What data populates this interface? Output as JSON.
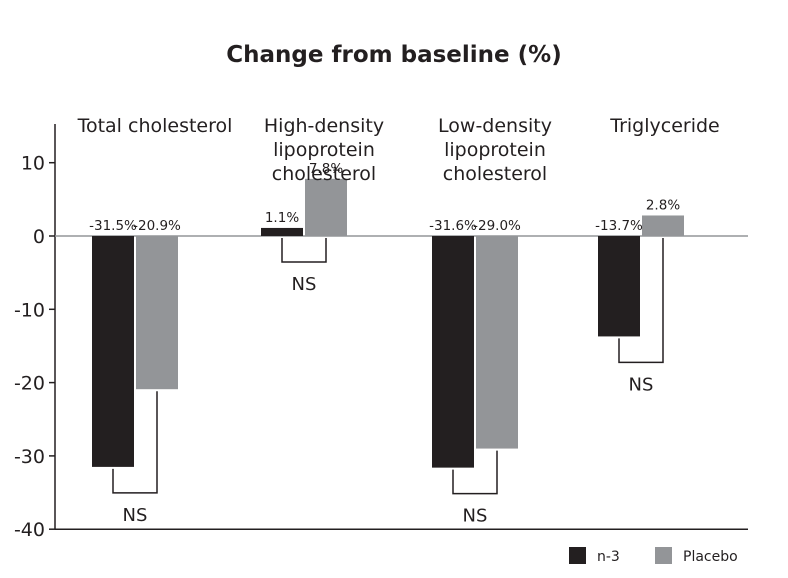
{
  "chart_data": {
    "type": "bar",
    "title": "Change from baseline (%)",
    "xlabel": "",
    "ylabel": "",
    "ylim": [
      -40,
      15
    ],
    "yticks": [
      10,
      0,
      -10,
      -20,
      -30,
      -40
    ],
    "ytick_labels": [
      "10",
      "0",
      "-10",
      "-20",
      "-30",
      "-40"
    ],
    "categories": [
      [
        "Total cholesterol"
      ],
      [
        "High-density",
        "lipoprotein",
        "cholesterol"
      ],
      [
        "Low-density",
        "lipoprotein",
        "cholesterol"
      ],
      [
        "Triglyceride"
      ]
    ],
    "series": [
      {
        "name": "n-3",
        "color": "#231f20",
        "values": [
          -31.5,
          1.1,
          -31.6,
          -13.7
        ],
        "labels": [
          "-31.5%",
          "1.1%",
          "-31.6%",
          "-13.7%"
        ]
      },
      {
        "name": "Placebo",
        "color": "#939598",
        "values": [
          -20.9,
          7.8,
          -29.0,
          2.8
        ],
        "labels": [
          "-20.9%",
          "7.8%",
          "-29.0%",
          "2.8%"
        ]
      }
    ],
    "annotations": [
      "NS",
      "NS",
      "NS",
      "NS"
    ],
    "grid": false,
    "legend_position": "bottom-right",
    "zero_line_color": "#939598"
  }
}
